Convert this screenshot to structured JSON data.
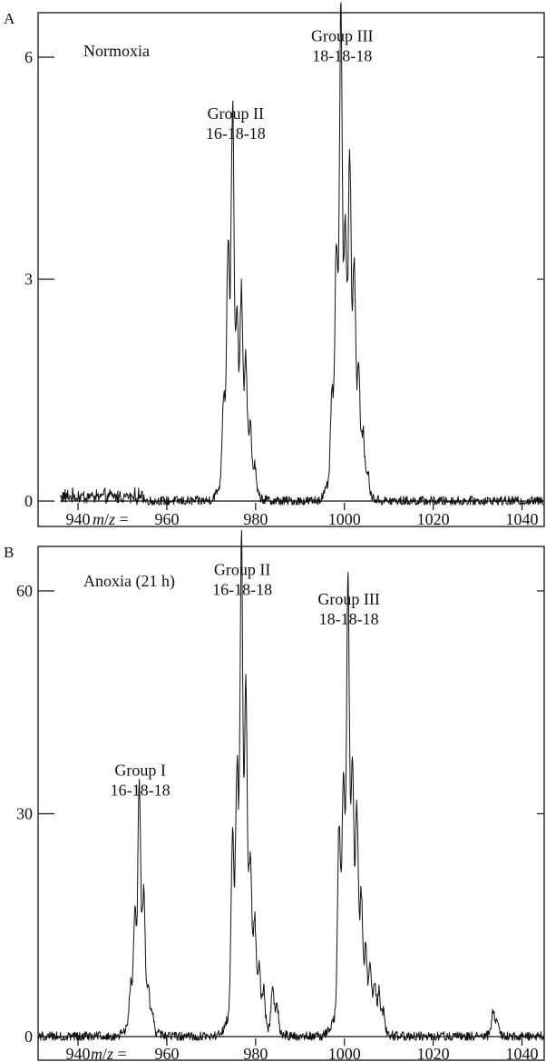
{
  "figure": {
    "panels": [
      "A",
      "B"
    ]
  },
  "chart_data": [
    {
      "type": "line",
      "panel_letter": "A",
      "title": "Normoxia",
      "xlabel_prefix": "m/z =",
      "x_ticks": [
        940,
        960,
        980,
        1000,
        1020,
        1040
      ],
      "xlim": [
        931,
        1045
      ],
      "y_ticks": [
        0,
        3,
        6
      ],
      "ylim": [
        -0.55,
        6.6
      ],
      "grid": false,
      "annotations": [
        {
          "lines": [
            "Group II",
            "16-18-18"
          ],
          "x": 975.5,
          "y": 4.75
        },
        {
          "lines": [
            "Group III",
            "18-18-18"
          ],
          "x": 999.5,
          "y": 5.8
        }
      ],
      "peaks": [
        {
          "x": 972.8,
          "y": 1.1
        },
        {
          "x": 973.8,
          "y": 3.0
        },
        {
          "x": 974.8,
          "y": 4.75
        },
        {
          "x": 975.8,
          "y": 1.9
        },
        {
          "x": 976.8,
          "y": 2.35
        },
        {
          "x": 977.8,
          "y": 1.55
        },
        {
          "x": 978.8,
          "y": 0.8
        },
        {
          "x": 979.8,
          "y": 0.35
        },
        {
          "x": 997.2,
          "y": 1.1
        },
        {
          "x": 998.2,
          "y": 2.9
        },
        {
          "x": 999.2,
          "y": 5.8
        },
        {
          "x": 1000.2,
          "y": 3.0
        },
        {
          "x": 1001.2,
          "y": 4.0
        },
        {
          "x": 1002.2,
          "y": 2.7
        },
        {
          "x": 1003.2,
          "y": 1.4
        },
        {
          "x": 1004.2,
          "y": 0.7
        },
        {
          "x": 1005.2,
          "y": 0.3
        }
      ],
      "baseline_range": [
        936,
        1045
      ]
    },
    {
      "type": "line",
      "panel_letter": "B",
      "title": "Anoxia (21 h)",
      "xlabel_prefix": "m/z =",
      "x_ticks": [
        940,
        960,
        980,
        1000,
        1020,
        1040
      ],
      "xlim": [
        931,
        1045
      ],
      "y_ticks": [
        0,
        30,
        60
      ],
      "ylim": [
        -1.5,
        67
      ],
      "grid": false,
      "annotations": [
        {
          "lines": [
            "Group I",
            "16-18-18"
          ],
          "x": 954.0,
          "y": 31
        },
        {
          "lines": [
            "Group II",
            "16-18-18"
          ],
          "x": 977.0,
          "y": 58
        },
        {
          "lines": [
            "Group III",
            "18-18-18"
          ],
          "x": 1001.0,
          "y": 54
        }
      ],
      "peaks": [
        {
          "x": 951.8,
          "y": 5
        },
        {
          "x": 952.8,
          "y": 14
        },
        {
          "x": 953.8,
          "y": 31
        },
        {
          "x": 954.8,
          "y": 16
        },
        {
          "x": 955.8,
          "y": 5
        },
        {
          "x": 956.8,
          "y": 2
        },
        {
          "x": 974.8,
          "y": 22
        },
        {
          "x": 975.8,
          "y": 30
        },
        {
          "x": 976.8,
          "y": 58
        },
        {
          "x": 977.8,
          "y": 39
        },
        {
          "x": 978.8,
          "y": 19
        },
        {
          "x": 979.8,
          "y": 12
        },
        {
          "x": 980.8,
          "y": 7
        },
        {
          "x": 981.8,
          "y": 5
        },
        {
          "x": 983.8,
          "y": 6
        },
        {
          "x": 984.8,
          "y": 4
        },
        {
          "x": 998.8,
          "y": 24
        },
        {
          "x": 999.8,
          "y": 29
        },
        {
          "x": 1000.8,
          "y": 54
        },
        {
          "x": 1001.8,
          "y": 31
        },
        {
          "x": 1002.8,
          "y": 25
        },
        {
          "x": 1003.8,
          "y": 15
        },
        {
          "x": 1004.8,
          "y": 9
        },
        {
          "x": 1005.8,
          "y": 8
        },
        {
          "x": 1006.8,
          "y": 6
        },
        {
          "x": 1007.8,
          "y": 5
        },
        {
          "x": 1008.8,
          "y": 3
        },
        {
          "x": 1033.5,
          "y": 3
        },
        {
          "x": 1034.5,
          "y": 2
        }
      ],
      "baseline_range": [
        931,
        1045
      ]
    }
  ]
}
